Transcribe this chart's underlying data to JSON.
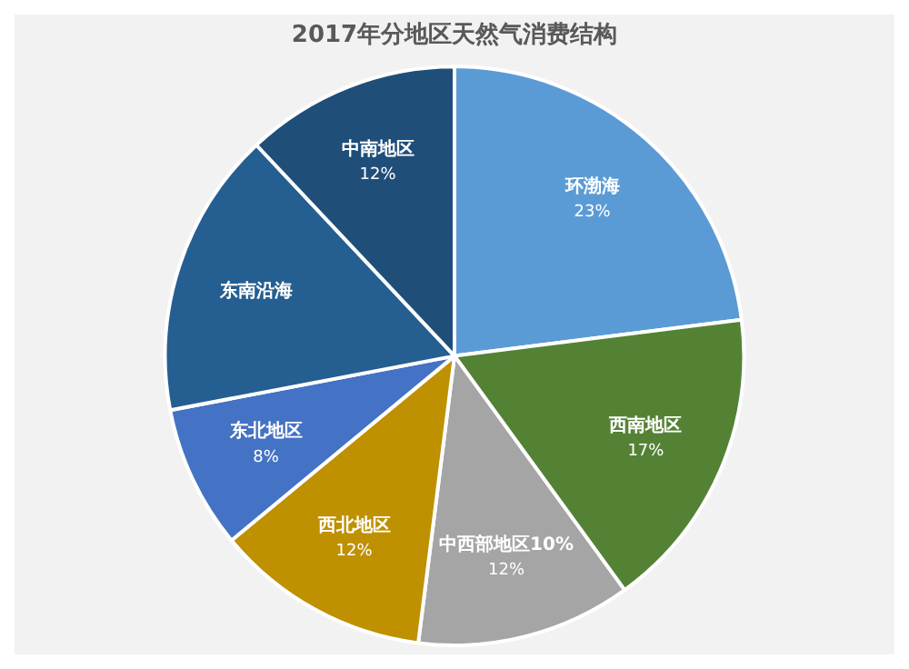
{
  "chart_data": {
    "type": "pie",
    "title": "2017年分地区天然气消费结构",
    "categories": [
      "环渤海",
      "西南地区",
      "中西部地区10%",
      "西北地区",
      "东北地区",
      "东南沿海",
      "中南地区"
    ],
    "values": [
      23,
      17,
      12,
      12,
      8,
      16,
      12
    ],
    "value_labels": [
      "23%",
      "17%",
      "12%",
      "12%",
      "8%",
      null,
      "12%"
    ],
    "colors": [
      "#5b9bd5",
      "#548235",
      "#a5a5a5",
      "#bf9000",
      "#4472c4",
      "#255e91",
      "#1f4e79"
    ],
    "legend": false
  }
}
